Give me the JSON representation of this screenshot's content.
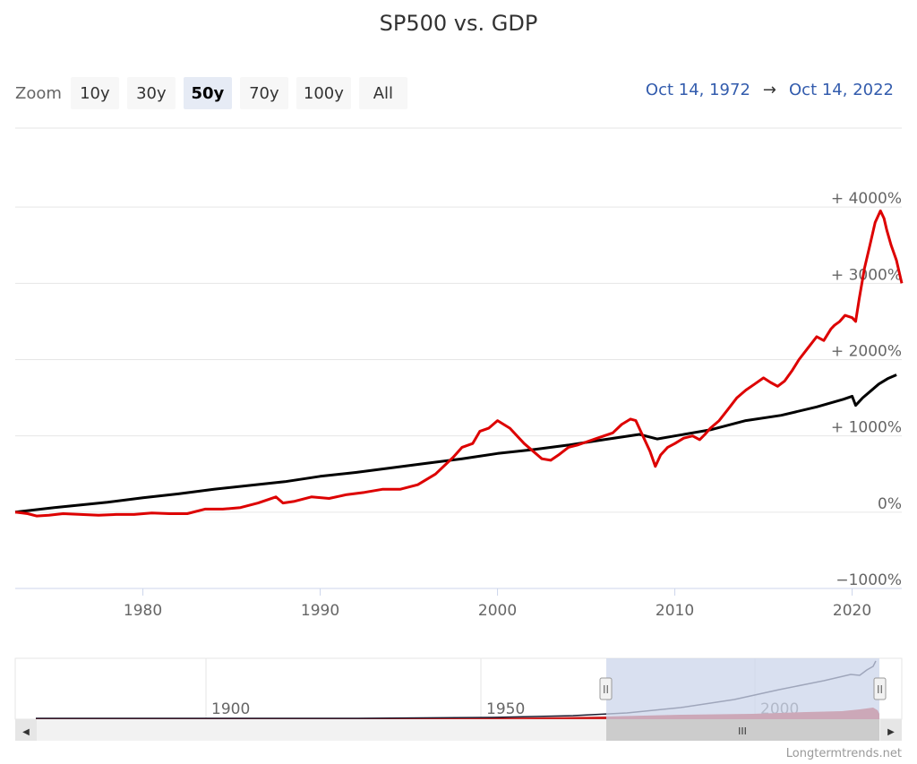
{
  "title": "SP500 vs. GDP",
  "zoom": {
    "label": "Zoom",
    "buttons": [
      "10y",
      "30y",
      "50y",
      "70y",
      "100y",
      "All"
    ],
    "active_index": 2
  },
  "range": {
    "from": "Oct 14, 1972",
    "arrow": "→",
    "to": "Oct 14, 2022"
  },
  "credit": "Longtermtrends.net",
  "colors": {
    "sp500": "#dd0000",
    "gdp": "#000000",
    "navigator_fill": "#cc2222",
    "navigator_mask": "#ccd6eb"
  },
  "navigator": {
    "tick_labels": [
      "1900",
      "1950",
      "2000"
    ],
    "handle_glyph": "II",
    "scrollbar_glyph": "III",
    "left_arrow": "◀",
    "right_arrow": "▶"
  },
  "chart_data": {
    "type": "line",
    "title": "SP500 vs. GDP",
    "xlabel": "",
    "ylabel": "",
    "xlim": [
      1972.8,
      2022.8
    ],
    "ylim": [
      -1000,
      5000
    ],
    "y_ticks": [
      -1000,
      0,
      1000,
      2000,
      3000,
      4000
    ],
    "y_tick_labels": [
      "−1000%",
      "0%",
      "+ 1000%",
      "+ 2000%",
      "+ 3000%",
      "+ 4000%"
    ],
    "x_ticks": [
      1980,
      1990,
      2000,
      2010,
      2020
    ],
    "x_tick_labels": [
      "1980",
      "1990",
      "2000",
      "2010",
      "2020"
    ],
    "series": [
      {
        "name": "SP500",
        "x": [
          1972.8,
          1973.5,
          1974.0,
          1974.7,
          1975.5,
          1976.5,
          1977.5,
          1978.5,
          1979.5,
          1980.5,
          1981.5,
          1982.5,
          1983.5,
          1984.5,
          1985.5,
          1986.5,
          1987.5,
          1987.9,
          1988.5,
          1989.5,
          1990.5,
          1991.5,
          1992.5,
          1993.5,
          1994.5,
          1995.5,
          1996.5,
          1997.5,
          1998.0,
          1998.6,
          1999.0,
          1999.5,
          2000.0,
          2000.7,
          2001.5,
          2002.0,
          2002.5,
          2003.0,
          2003.5,
          2004.0,
          2004.5,
          2005.0,
          2005.5,
          2006.0,
          2006.5,
          2007.0,
          2007.5,
          2007.8,
          2008.2,
          2008.6,
          2008.9,
          2009.2,
          2009.6,
          2010.0,
          2010.5,
          2011.0,
          2011.4,
          2011.7,
          2012.0,
          2012.5,
          2013.0,
          2013.5,
          2014.0,
          2014.5,
          2015.0,
          2015.4,
          2015.8,
          2016.2,
          2016.6,
          2017.0,
          2017.5,
          2018.0,
          2018.4,
          2018.8,
          2019.0,
          2019.3,
          2019.6,
          2020.0,
          2020.2,
          2020.4,
          2020.7,
          2021.0,
          2021.3,
          2021.6,
          2021.8,
          2021.95,
          2022.2,
          2022.5,
          2022.8
        ],
        "values": [
          0,
          -20,
          -50,
          -40,
          -20,
          -30,
          -40,
          -30,
          -30,
          -10,
          -20,
          -20,
          40,
          40,
          60,
          120,
          200,
          120,
          140,
          200,
          180,
          230,
          260,
          300,
          300,
          360,
          500,
          720,
          850,
          900,
          1060,
          1100,
          1200,
          1100,
          900,
          800,
          700,
          680,
          760,
          850,
          880,
          920,
          960,
          1000,
          1040,
          1150,
          1220,
          1200,
          1000,
          800,
          600,
          750,
          850,
          900,
          970,
          1000,
          950,
          1020,
          1100,
          1200,
          1350,
          1500,
          1600,
          1680,
          1760,
          1700,
          1650,
          1720,
          1850,
          2000,
          2150,
          2300,
          2250,
          2400,
          2450,
          2500,
          2580,
          2550,
          2500,
          2800,
          3200,
          3500,
          3800,
          3950,
          3850,
          3700,
          3500,
          3300,
          3000
        ]
      },
      {
        "name": "GDP",
        "x": [
          1972.8,
          1975.0,
          1978.0,
          1980.0,
          1982.0,
          1984.0,
          1986.0,
          1988.0,
          1990.0,
          1992.0,
          1994.0,
          1996.0,
          1998.0,
          2000.0,
          2002.0,
          2004.0,
          2006.0,
          2008.0,
          2009.0,
          2010.0,
          2012.0,
          2014.0,
          2016.0,
          2018.0,
          2019.5,
          2020.0,
          2020.2,
          2020.4,
          2020.6,
          2021.0,
          2021.5,
          2022.0,
          2022.5
        ],
        "values": [
          0,
          60,
          130,
          190,
          240,
          300,
          350,
          400,
          470,
          520,
          580,
          640,
          700,
          770,
          820,
          880,
          950,
          1020,
          960,
          1000,
          1080,
          1200,
          1270,
          1380,
          1480,
          1520,
          1400,
          1450,
          1500,
          1580,
          1680,
          1750,
          1800
        ]
      }
    ]
  }
}
